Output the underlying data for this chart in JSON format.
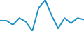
{
  "x": [
    0,
    1,
    2,
    3,
    4,
    5,
    6,
    7,
    8,
    9,
    10,
    11,
    12,
    13
  ],
  "y": [
    6.0,
    6.0,
    5.2,
    6.5,
    5.8,
    4.0,
    8.5,
    10.0,
    7.0,
    4.5,
    6.5,
    5.5,
    6.5,
    6.2
  ],
  "line_color": "#1b8fc4",
  "line_width": 1.4,
  "background_color": "#ffffff"
}
